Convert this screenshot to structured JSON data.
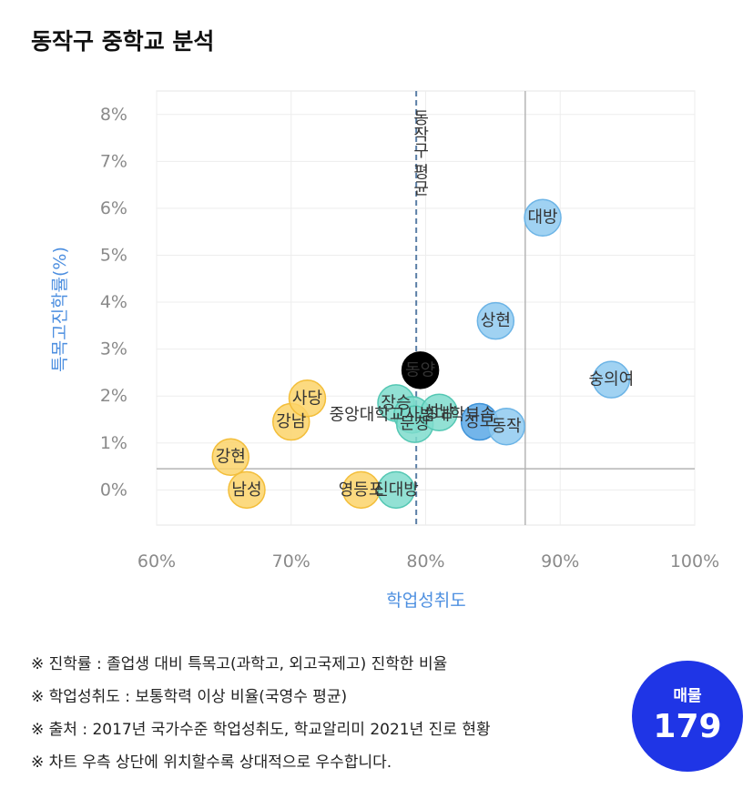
{
  "title": "동작구 중학교 분석",
  "notes": [
    "※ 진학률 : 졸업생 대비 특목고(과학고, 외고국제고) 진학한 비율",
    "※ 학업성취도 : 보통학력 이상 비율(국영수 평균)",
    "※ 출처 : 2017년 국가수준 학업성취도, 학교알리미 2021년 진로 현황",
    "※ 차트 우측 상단에 위치할수록 상대적으로 우수합니다."
  ],
  "badge": {
    "label": "매물",
    "value": "179"
  },
  "colors": {
    "yellow": "#fcd46a",
    "teal": "#7fdccc",
    "blue": "#8fcaf0",
    "darkblue": "#5ba8e6",
    "black": "#000000",
    "axis_label": "#4d8fe0"
  },
  "chart_data": {
    "type": "scatter",
    "xlabel": "학업성취도",
    "ylabel": "특목고진학률(%)",
    "xlim": [
      60,
      100
    ],
    "ylim": [
      -0.75,
      8.5
    ],
    "xticks": [
      "60%",
      "70%",
      "80%",
      "90%",
      "100%"
    ],
    "xtick_values": [
      60,
      70,
      80,
      90,
      100
    ],
    "yticks": [
      "0%",
      "1%",
      "2%",
      "3%",
      "4%",
      "5%",
      "6%",
      "7%",
      "8%"
    ],
    "ytick_values": [
      0,
      1,
      2,
      3,
      4,
      5,
      6,
      7,
      8
    ],
    "reference_lines": [
      {
        "axis": "x",
        "value": 79.3,
        "style": "dashed",
        "label": "동작구 평균"
      },
      {
        "axis": "x",
        "value": 87.4,
        "style": "solid",
        "label": ""
      },
      {
        "axis": "y",
        "value": 0.45,
        "style": "solid",
        "label": ""
      }
    ],
    "points": [
      {
        "name": "강현",
        "x": 65.5,
        "y": 0.7,
        "color": "yellow"
      },
      {
        "name": "남성",
        "x": 66.7,
        "y": 0.0,
        "color": "yellow"
      },
      {
        "name": "강남",
        "x": 70.0,
        "y": 1.45,
        "color": "yellow"
      },
      {
        "name": "사당",
        "x": 71.2,
        "y": 1.95,
        "color": "yellow"
      },
      {
        "name": "영등포",
        "x": 75.2,
        "y": 0.0,
        "color": "yellow"
      },
      {
        "name": "신대방",
        "x": 77.8,
        "y": 0.0,
        "color": "teal"
      },
      {
        "name": "장승",
        "x": 77.8,
        "y": 1.85,
        "color": "teal"
      },
      {
        "name": "중앙대학교사범대학부속",
        "x": 79.0,
        "y": 1.6,
        "color": "teal"
      },
      {
        "name": "문창",
        "x": 79.2,
        "y": 1.4,
        "color": "teal"
      },
      {
        "name": "성남",
        "x": 81.0,
        "y": 1.65,
        "color": "teal"
      },
      {
        "name": "성보",
        "x": 84.0,
        "y": 1.45,
        "color": "darkblue"
      },
      {
        "name": "동작",
        "x": 86.0,
        "y": 1.35,
        "color": "blue"
      },
      {
        "name": "상현",
        "x": 85.2,
        "y": 3.6,
        "color": "blue"
      },
      {
        "name": "대방",
        "x": 88.7,
        "y": 5.8,
        "color": "blue"
      },
      {
        "name": "숭의여",
        "x": 93.8,
        "y": 2.35,
        "color": "blue"
      },
      {
        "name": "동양",
        "x": 79.6,
        "y": 2.55,
        "color": "black"
      }
    ]
  }
}
